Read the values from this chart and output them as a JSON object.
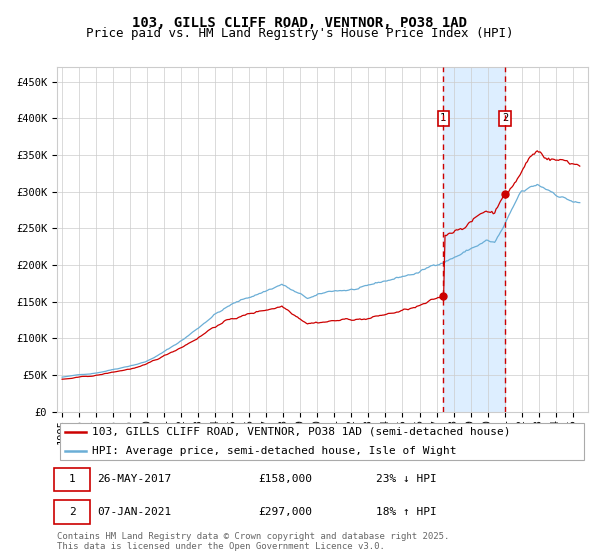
{
  "title_line1": "103, GILLS CLIFF ROAD, VENTNOR, PO38 1AD",
  "title_line2": "Price paid vs. HM Land Registry's House Price Index (HPI)",
  "legend_line1": "103, GILLS CLIFF ROAD, VENTNOR, PO38 1AD (semi-detached house)",
  "legend_line2": "HPI: Average price, semi-detached house, Isle of Wight",
  "annotation1_date": "26-MAY-2017",
  "annotation1_price": "£158,000",
  "annotation1_pct": "23% ↓ HPI",
  "annotation2_date": "07-JAN-2021",
  "annotation2_price": "£297,000",
  "annotation2_pct": "18% ↑ HPI",
  "sale1_year": 2017.4,
  "sale1_price": 158000,
  "sale2_year": 2021.02,
  "sale2_price": 297000,
  "hpi_color": "#6baed6",
  "price_color": "#cc0000",
  "background_color": "#ffffff",
  "plot_bg_color": "#ffffff",
  "shade_color": "#ddeeff",
  "grid_color": "#cccccc",
  "vline_color": "#cc0000",
  "ylim": [
    0,
    470000
  ],
  "ytick_values": [
    0,
    50000,
    100000,
    150000,
    200000,
    250000,
    300000,
    350000,
    400000,
    450000
  ],
  "ytick_labels": [
    "£0",
    "£50K",
    "£100K",
    "£150K",
    "£200K",
    "£250K",
    "£300K",
    "£350K",
    "£400K",
    "£450K"
  ],
  "footer_text": "Contains HM Land Registry data © Crown copyright and database right 2025.\nThis data is licensed under the Open Government Licence v3.0.",
  "title_fontsize": 10,
  "subtitle_fontsize": 9,
  "tick_fontsize": 7.5,
  "legend_fontsize": 8,
  "annotation_fontsize": 8,
  "footer_fontsize": 6.5
}
